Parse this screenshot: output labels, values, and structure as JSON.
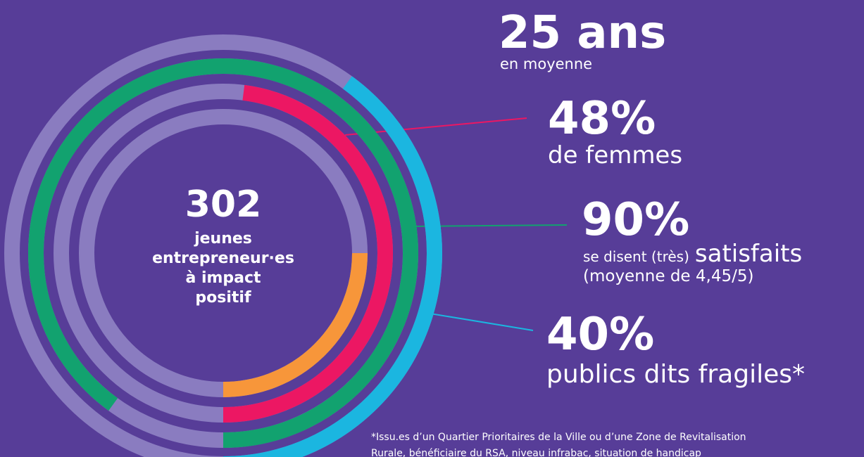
{
  "chart_data": {
    "type": "radial",
    "center": {
      "value": "302",
      "lines": [
        "jeunes",
        "entrepreneur·es",
        "à impact",
        "positif"
      ]
    },
    "ylim": [
      0,
      100
    ],
    "values": [
      40,
      90,
      48,
      25
    ],
    "value_labels": [
      "40%",
      "90%",
      "48%",
      "25 ans"
    ],
    "colors": [
      "#1bb6e0",
      "#12a26f",
      "#ec1763",
      "#f7963a"
    ],
    "track_color": "#8a7cc0",
    "captions": [
      [
        "publics dits fragiles*"
      ],
      [
        "se disent (très)",
        "satisfaits",
        "(moyenne de 4,45/5)"
      ],
      [
        "de femmes"
      ],
      [
        "en moyenne"
      ]
    ],
    "footnote": [
      "*Issu.es d’un Quartier Prioritaires de la Ville ou d’une Zone de Revitalisation",
      "Rurale, bénéficiaire du RSA, niveau infrabac, situation de handicap"
    ]
  }
}
